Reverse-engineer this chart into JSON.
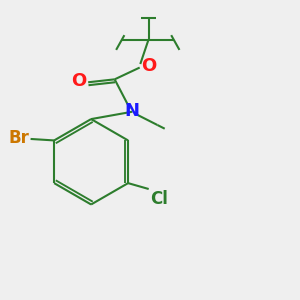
{
  "bg_color": "#efefef",
  "bond_color": "#2d7d2d",
  "bond_width": 1.5,
  "atom_colors": {
    "N": "#1a1aff",
    "O": "#ff1a1a",
    "Br": "#cc7700",
    "Cl": "#2d7d2d",
    "C": "#000000"
  },
  "font_sizes": {
    "N": 13,
    "O": 13,
    "Br": 12,
    "Cl": 12
  }
}
